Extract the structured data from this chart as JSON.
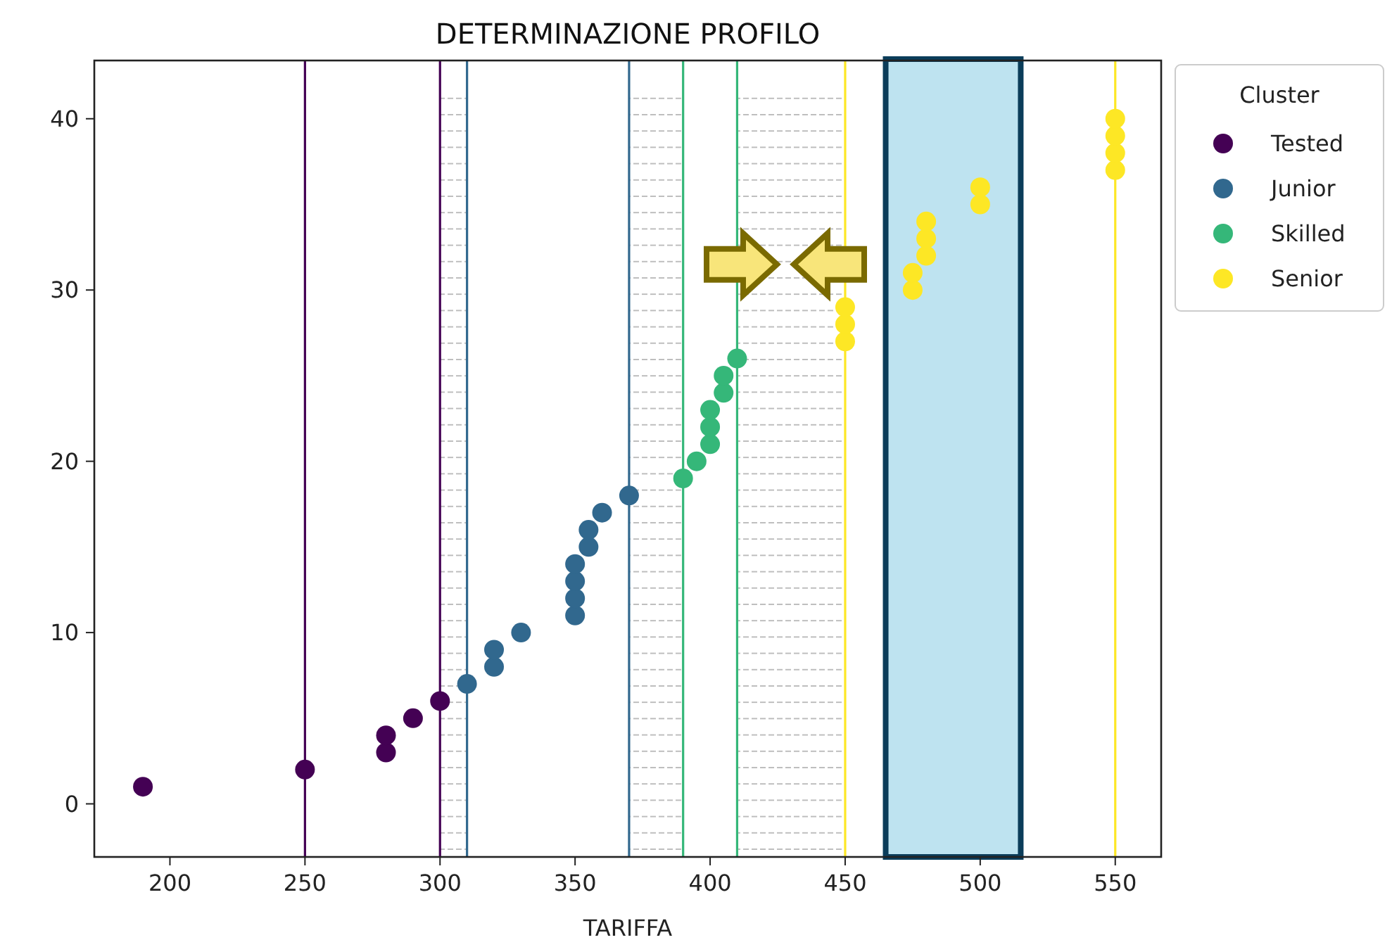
{
  "chart_data": {
    "type": "scatter",
    "title": "DETERMINAZIONE PROFILO",
    "xlabel": "TARIFFA",
    "legend_title": "Cluster",
    "legend": "top right",
    "marker": "circle",
    "grid": false,
    "xlim": [
      172,
      567
    ],
    "ylim": [
      -3.1,
      43.4
    ],
    "xticks": [
      200,
      250,
      300,
      350,
      400,
      450,
      500,
      550
    ],
    "yticks": [
      0,
      10,
      20,
      30,
      40
    ],
    "series": [
      {
        "name": "Tested",
        "color": "#440154",
        "x": [
          190,
          250,
          280,
          280,
          290,
          300
        ],
        "values": [
          1,
          2,
          3,
          4,
          5,
          6
        ]
      },
      {
        "name": "Junior",
        "color": "#31688e",
        "x": [
          310,
          320,
          320,
          330,
          350,
          350,
          350,
          350,
          355,
          355,
          360,
          370
        ],
        "values": [
          7,
          8,
          9,
          10,
          11,
          12,
          13,
          14,
          15,
          16,
          17,
          18
        ]
      },
      {
        "name": "Skilled",
        "color": "#35b779",
        "x": [
          390,
          395,
          400,
          400,
          400,
          405,
          405,
          410
        ],
        "values": [
          19,
          20,
          21,
          22,
          23,
          24,
          25,
          26
        ]
      },
      {
        "name": "Senior",
        "color": "#fde725",
        "x": [
          450,
          450,
          450,
          475,
          475,
          480,
          480,
          480,
          500,
          500,
          550,
          550,
          550,
          550
        ],
        "values": [
          27,
          28,
          29,
          30,
          31,
          32,
          33,
          34,
          35,
          36,
          37,
          38,
          39,
          40
        ]
      }
    ],
    "ref_lines": [
      {
        "axis": "x",
        "value": 250,
        "color": "#440154"
      },
      {
        "axis": "x",
        "value": 300,
        "color": "#440154"
      },
      {
        "axis": "x",
        "value": 310,
        "color": "#31688e"
      },
      {
        "axis": "x",
        "value": 370,
        "color": "#31688e"
      },
      {
        "axis": "x",
        "value": 390,
        "color": "#35b779"
      },
      {
        "axis": "x",
        "value": 410,
        "color": "#35b779"
      },
      {
        "axis": "x",
        "value": 450,
        "color": "#fde725"
      },
      {
        "axis": "x",
        "value": 550,
        "color": "#fde725"
      }
    ],
    "bands": [
      {
        "axis": "x",
        "from": 300,
        "to": 310,
        "color": "#b8b8b8"
      },
      {
        "axis": "x",
        "from": 370,
        "to": 390,
        "color": "#b8b8b8"
      },
      {
        "axis": "x",
        "from": 410,
        "to": 450,
        "color": "#b8b8b8"
      }
    ]
  }
}
